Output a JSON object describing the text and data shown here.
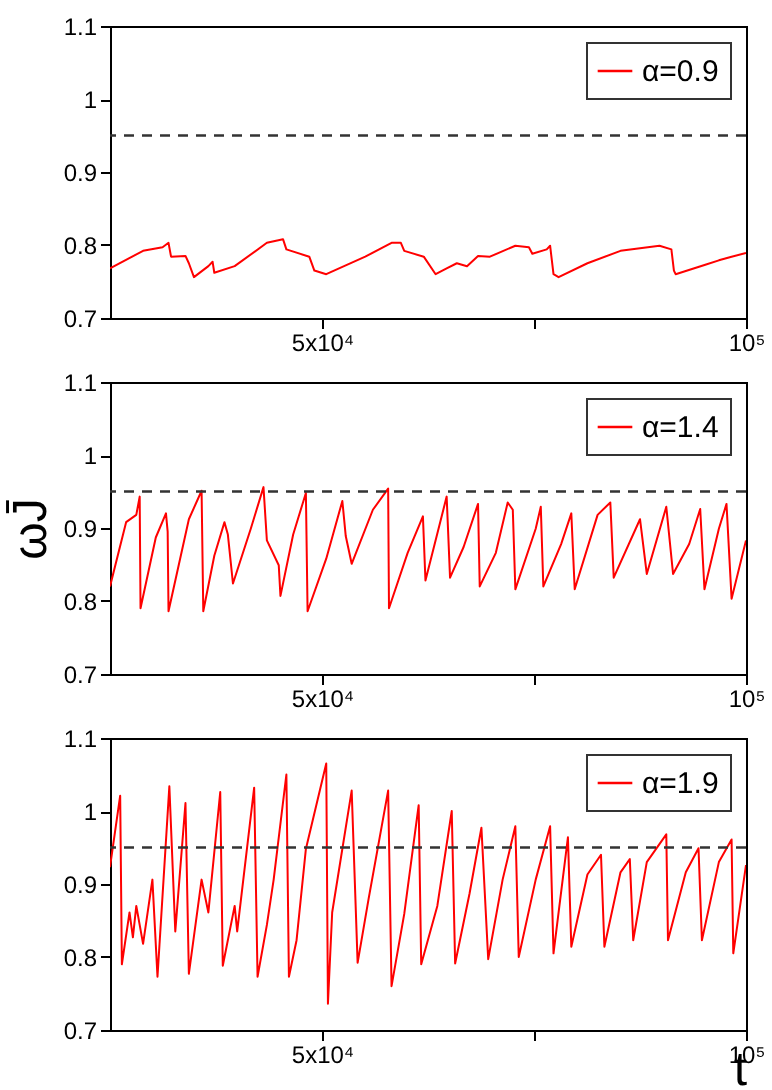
{
  "chart_data": [
    {
      "type": "line",
      "legend": "top right",
      "xlim": [
        25000,
        100000
      ],
      "xticks": [
        {
          "value": 50000,
          "label": "5x10⁴"
        },
        {
          "value": 75000,
          "label": null
        },
        {
          "value": 100000,
          "label": "10⁵"
        }
      ],
      "ylim": [
        0.7,
        1.1
      ],
      "yticks": [
        0.7,
        0.8,
        0.9,
        1,
        1.1
      ],
      "ref_lines": [
        {
          "axis": "y",
          "value": 0.95,
          "color": "#333333",
          "line_style": "dashed"
        }
      ],
      "series": [
        {
          "name": "α=0.9",
          "color": "#ff0000",
          "x": [
            25000,
            28900,
            31200,
            31900,
            32200,
            33900,
            34300,
            34900,
            36600,
            37100,
            37300,
            39700,
            43500,
            45400,
            45800,
            48500,
            49100,
            50500,
            55100,
            58200,
            59300,
            59700,
            62000,
            63400,
            64700,
            65900,
            67100,
            68400,
            69800,
            72800,
            74400,
            74800,
            76500,
            76900,
            77300,
            77900,
            81300,
            85200,
            89800,
            91200,
            91500,
            91700,
            95200,
            96800,
            98300,
            100000
          ],
          "values": [
            0.768,
            0.792,
            0.797,
            0.803,
            0.784,
            0.785,
            0.775,
            0.756,
            0.771,
            0.777,
            0.762,
            0.771,
            0.803,
            0.808,
            0.794,
            0.784,
            0.765,
            0.76,
            0.784,
            0.803,
            0.803,
            0.792,
            0.784,
            0.76,
            0.768,
            0.775,
            0.771,
            0.785,
            0.784,
            0.799,
            0.797,
            0.788,
            0.794,
            0.799,
            0.76,
            0.756,
            0.775,
            0.792,
            0.799,
            0.794,
            0.765,
            0.76,
            0.773,
            0.779,
            0.784,
            0.789
          ]
        }
      ]
    },
    {
      "type": "line",
      "legend": "top right",
      "ylabel": "ωJ̄",
      "xlim": [
        25000,
        100000
      ],
      "xticks": [
        {
          "value": 50000,
          "label": "5x10⁴"
        },
        {
          "value": 75000,
          "label": null
        },
        {
          "value": 100000,
          "label": "10⁵"
        }
      ],
      "ylim": [
        0.7,
        1.1
      ],
      "yticks": [
        0.7,
        0.8,
        0.9,
        1,
        1.1
      ],
      "ref_lines": [
        {
          "axis": "y",
          "value": 0.95,
          "color": "#333333",
          "line_style": "dashed"
        }
      ],
      "series": [
        {
          "name": "α=1.4",
          "color": "#ff0000",
          "x": [
            25000,
            26900,
            28100,
            28500,
            28600,
            30400,
            31600,
            31800,
            31900,
            34300,
            35800,
            36000,
            37300,
            38500,
            38900,
            39500,
            41600,
            43100,
            43500,
            44900,
            45100,
            46600,
            48100,
            48300,
            50500,
            52400,
            52800,
            53500,
            56000,
            57800,
            57900,
            60100,
            61900,
            62200,
            64700,
            65100,
            66700,
            68400,
            68600,
            70500,
            71900,
            72500,
            72800,
            75200,
            75800,
            76100,
            78200,
            79400,
            79800,
            82500,
            84000,
            84400,
            87500,
            88300,
            90600,
            91400,
            93300,
            94600,
            95100,
            96800,
            97700,
            98300,
            100000
          ],
          "values": [
            0.82,
            0.908,
            0.918,
            0.943,
            0.79,
            0.887,
            0.92,
            0.895,
            0.786,
            0.912,
            0.951,
            0.786,
            0.862,
            0.908,
            0.891,
            0.824,
            0.899,
            0.956,
            0.883,
            0.849,
            0.807,
            0.891,
            0.948,
            0.786,
            0.858,
            0.937,
            0.889,
            0.851,
            0.925,
            0.954,
            0.79,
            0.866,
            0.916,
            0.828,
            0.943,
            0.832,
            0.874,
            0.933,
            0.82,
            0.866,
            0.935,
            0.925,
            0.816,
            0.899,
            0.929,
            0.82,
            0.878,
            0.92,
            0.816,
            0.918,
            0.935,
            0.832,
            0.912,
            0.837,
            0.929,
            0.837,
            0.878,
            0.926,
            0.816,
            0.899,
            0.933,
            0.803,
            0.883
          ]
        }
      ]
    },
    {
      "type": "line",
      "legend": "top right",
      "xlabel": "t",
      "xlim": [
        25000,
        100000
      ],
      "xticks": [
        {
          "value": 50000,
          "label": "5x10⁴"
        },
        {
          "value": 75000,
          "label": null
        },
        {
          "value": 100000,
          "label": "10⁵"
        }
      ],
      "ylim": [
        0.7,
        1.1
      ],
      "yticks": [
        0.7,
        0.8,
        0.9,
        1,
        1.1
      ],
      "ref_lines": [
        {
          "axis": "y",
          "value": 0.95,
          "color": "#333333",
          "line_style": "dashed"
        }
      ],
      "series": [
        {
          "name": "α=1.9",
          "color": "#ff0000",
          "x": [
            25000,
            26200,
            26400,
            27300,
            27700,
            28100,
            28900,
            30000,
            30600,
            32000,
            32700,
            33900,
            34300,
            35800,
            36600,
            38000,
            38300,
            39700,
            40000,
            42000,
            42400,
            43500,
            44300,
            45800,
            46100,
            47000,
            48100,
            50500,
            50700,
            51200,
            53500,
            54200,
            55500,
            57800,
            58200,
            59700,
            61400,
            61700,
            63600,
            65300,
            65700,
            67400,
            68800,
            69600,
            71300,
            72800,
            73200,
            75200,
            76900,
            77300,
            79000,
            79400,
            81300,
            82900,
            83300,
            85200,
            86300,
            86700,
            88300,
            90600,
            90800,
            92900,
            94400,
            94800,
            96800,
            98300,
            98500,
            100000
          ],
          "values": [
            0.923,
            1.021,
            0.79,
            0.861,
            0.827,
            0.87,
            0.818,
            0.906,
            0.773,
            1.034,
            0.835,
            1.011,
            0.777,
            0.906,
            0.861,
            1.026,
            0.788,
            0.87,
            0.835,
            1.032,
            0.773,
            0.844,
            0.906,
            1.05,
            0.773,
            0.823,
            0.948,
            1.065,
            0.736,
            0.861,
            1.028,
            0.792,
            0.88,
            1.028,
            0.76,
            0.859,
            1.008,
            0.79,
            0.87,
            1.0,
            0.791,
            0.887,
            0.977,
            0.797,
            0.906,
            0.979,
            0.8,
            0.906,
            0.979,
            0.805,
            0.964,
            0.814,
            0.913,
            0.94,
            0.814,
            0.916,
            0.934,
            0.823,
            0.93,
            0.968,
            0.823,
            0.916,
            0.949,
            0.823,
            0.93,
            0.961,
            0.805,
            0.926
          ]
        }
      ]
    }
  ]
}
